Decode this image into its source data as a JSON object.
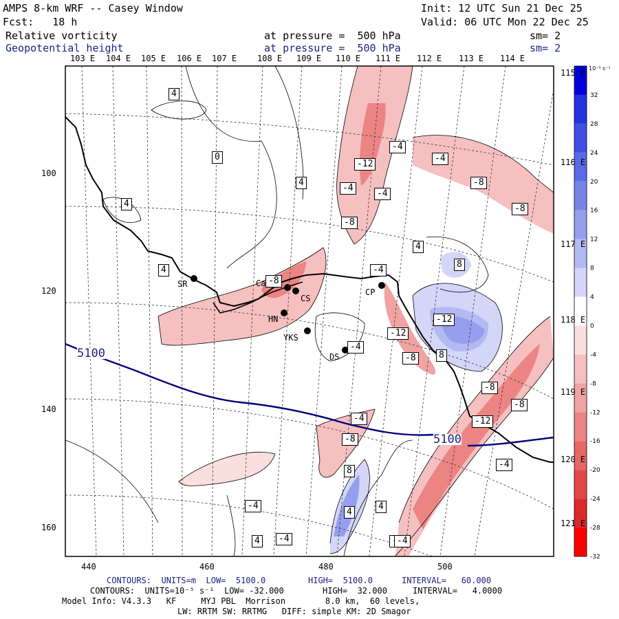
{
  "header": {
    "title": "AMPS 8-km WRF -- Casey Window",
    "init": "Init: 12 UTC Sun 21 Dec 25",
    "fcst": "Fcst:   18 h",
    "valid": "Valid: 06 UTC Mon 22 Dec 25",
    "field1": "Relative vorticity",
    "field1_level": "at pressure =  500 hPa",
    "field1_sm": "sm= 2",
    "field2": "Geopotential height",
    "field2_level": "at pressure =  500 hPa",
    "field2_sm": "sm= 2"
  },
  "top_lon_labels": [
    "103 E",
    "104 E",
    "105 E",
    "106 E",
    "107 E",
    "108 E",
    "109 E",
    "110 E",
    "111 E",
    "112 E",
    "113 E",
    "114 E"
  ],
  "right_lon_labels": [
    "115 E",
    "116 E",
    "117 E",
    "118 E",
    "119 E",
    "120 E",
    "121 E"
  ],
  "y_axis": [
    "100",
    "120",
    "140",
    "160"
  ],
  "x_axis": [
    "440",
    "460",
    "480",
    "500"
  ],
  "colorbar": {
    "unit": "10⁻⁵ s⁻¹",
    "labels": [
      "32",
      "28",
      "24",
      "20",
      "16",
      "12",
      "8",
      "4",
      "0",
      "-4",
      "-8",
      "-12",
      "-16",
      "-20",
      "-24",
      "-28",
      "-32"
    ],
    "colors": [
      "#0000dd",
      "#2233e0",
      "#3f4fe3",
      "#5b6ae6",
      "#7884ea",
      "#959fee",
      "#b3b9f2",
      "#d3d6f7",
      "#ffffff",
      "#fbdede",
      "#f6c0c0",
      "#f1a2a2",
      "#ec8484",
      "#e76666",
      "#e24747",
      "#dd2929",
      "#ff0000"
    ]
  },
  "stations": [
    {
      "name": "SR"
    },
    {
      "name": "Casey"
    },
    {
      "name": "CS"
    },
    {
      "name": "HN"
    },
    {
      "name": "YKS"
    },
    {
      "name": "DS"
    },
    {
      "name": "CP"
    }
  ],
  "contour_labels": [
    "4",
    "0",
    "4",
    "4",
    "4",
    "-12",
    "-4",
    "-4",
    "-4",
    "-4",
    "-8",
    "-8",
    "-8",
    "-8",
    "4",
    "8",
    "-4",
    "-12",
    "-12",
    "-8",
    "8",
    "-4",
    "-4",
    "-8",
    "-8",
    "-12",
    "-4",
    "-8",
    "8",
    "4",
    "4",
    "-4",
    "4",
    "-4",
    "-4",
    "-4"
  ],
  "height_labels": [
    "5100",
    "5100"
  ],
  "footer": {
    "line1_a": "CONTOURS:  UNITS=m  LOW=  5100.0",
    "line1_b": "HIGH=  5100.0",
    "line1_c": "INTERVAL=   60.000",
    "line2_a": "CONTOURS:  UNITS=10⁻⁵ s⁻¹  LOW= -32.000",
    "line2_b": "HIGH=  32.000",
    "line2_c": "INTERVAL=   4.0000",
    "line3": "Model Info: V4.3.3   KF     MYJ PBL  Morrison        8.0 km,  60 levels,",
    "line4": "LW: RRTM SW: RRTMG   DIFF: simple KM: 2D Smagor"
  },
  "colors": {
    "navy": "#1a237e",
    "pink": "#f6c0c0",
    "red": "#e76666",
    "blue": "#959fee"
  }
}
